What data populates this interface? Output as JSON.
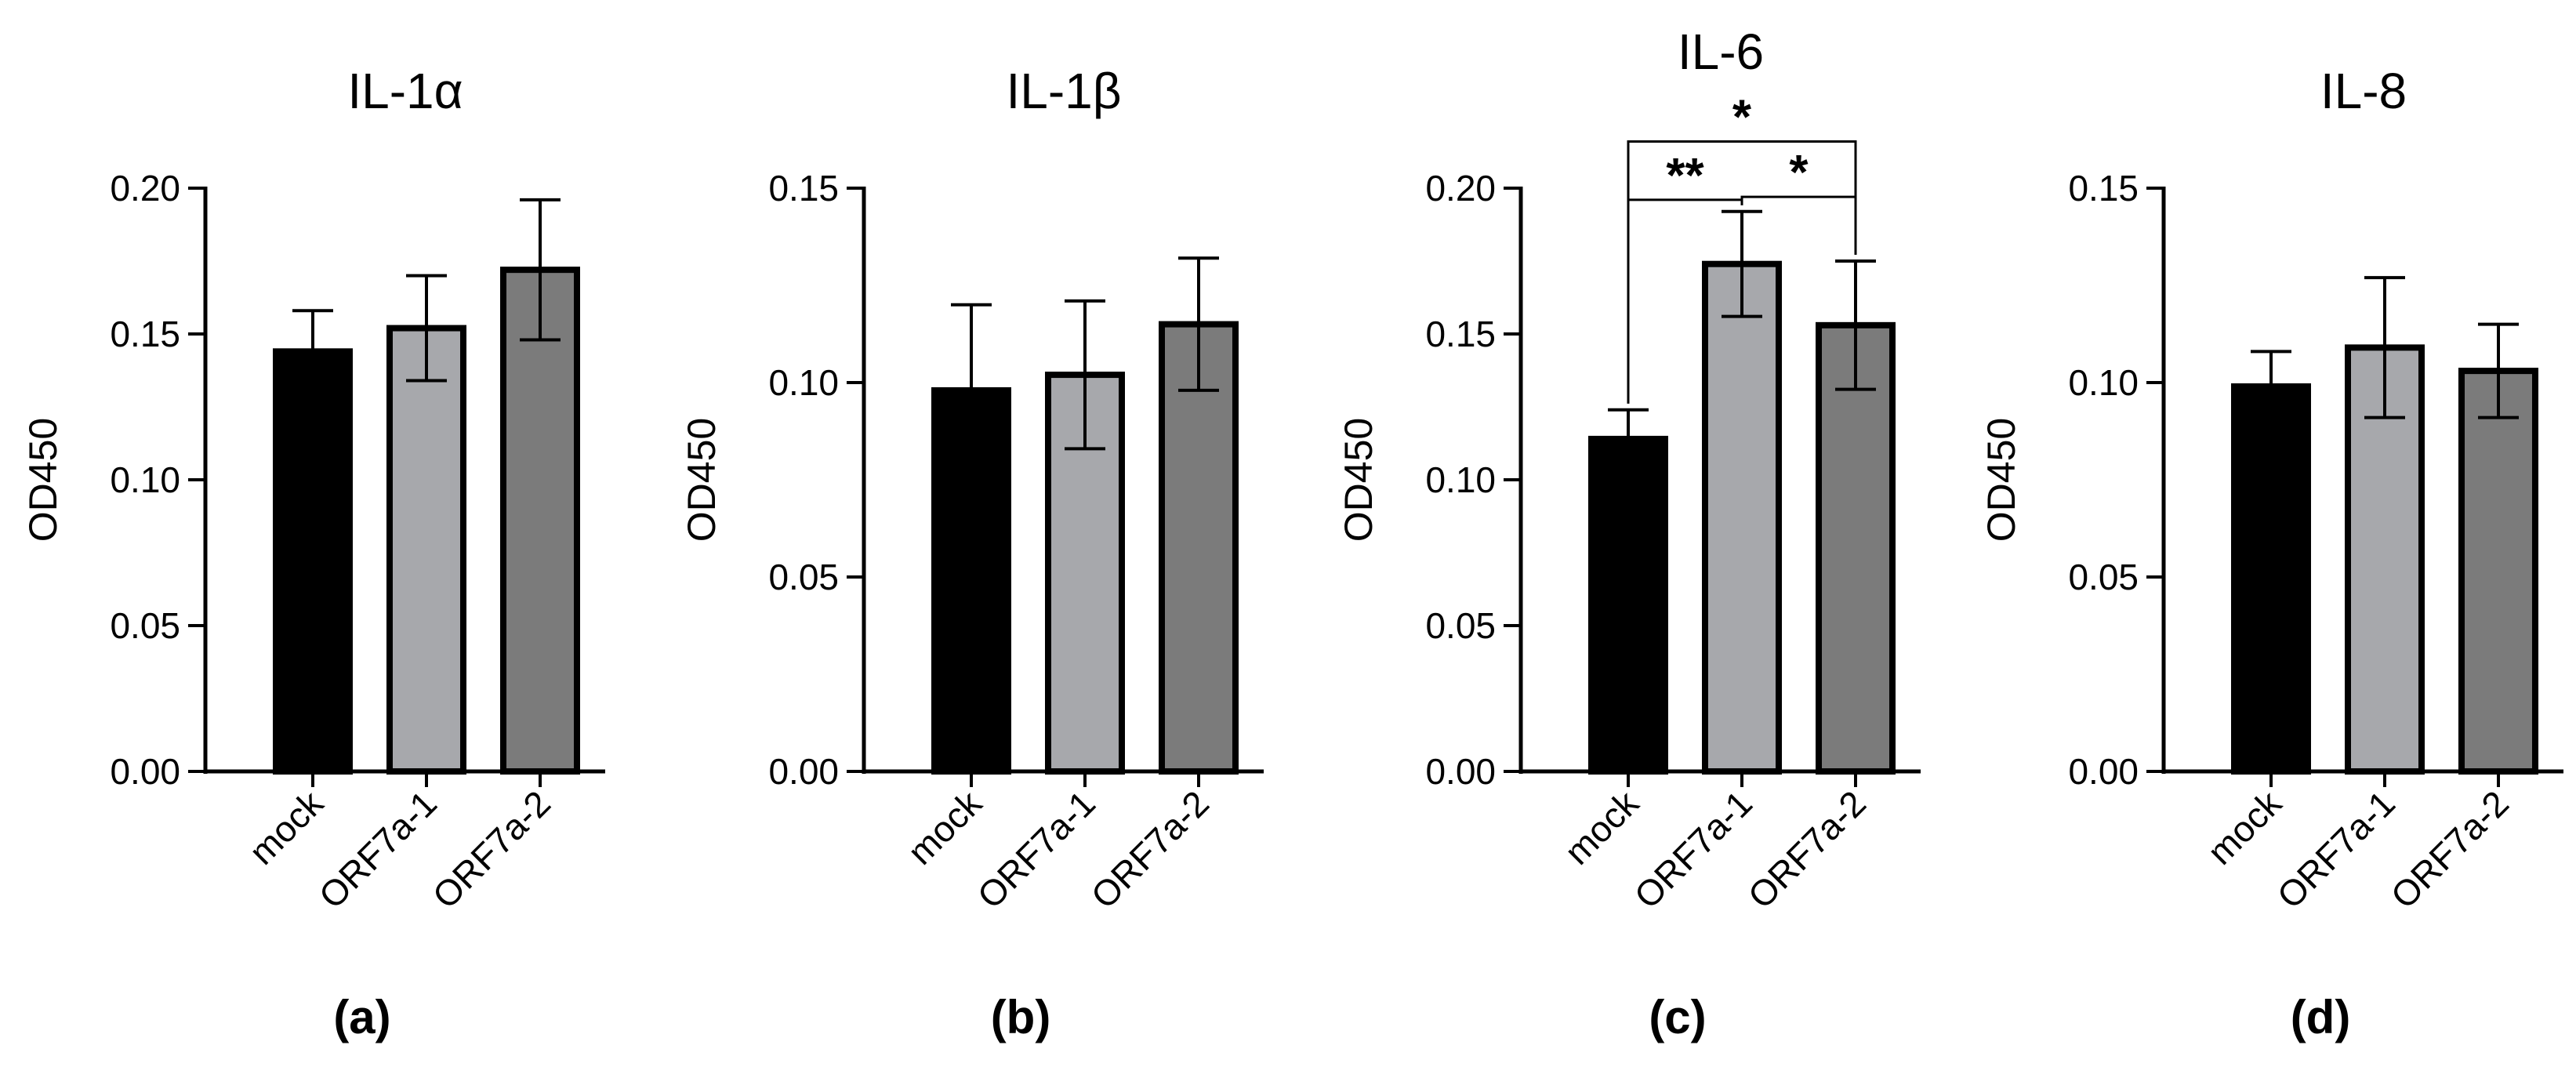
{
  "chart_data": [
    {
      "type": "bar",
      "panel_label": "(a)",
      "title": "IL-1α",
      "xlabel": "",
      "ylabel": "OD450",
      "categories": [
        "mock",
        "ORF7a-1",
        "ORF7a-2"
      ],
      "values": [
        0.144,
        0.152,
        0.172
      ],
      "errors": [
        0.014,
        0.018,
        0.024
      ],
      "ylim": [
        0,
        0.2
      ],
      "yticks": [
        "0.00",
        "0.05",
        "0.10",
        "0.15",
        "0.20"
      ],
      "bar_colors": [
        "#000000",
        "#a7a8ac",
        "#7b7b7b"
      ],
      "significance": []
    },
    {
      "type": "bar",
      "panel_label": "(b)",
      "title": "IL-1β",
      "xlabel": "",
      "ylabel": "OD450",
      "categories": [
        "mock",
        "ORF7a-1",
        "ORF7a-2"
      ],
      "values": [
        0.098,
        0.102,
        0.115
      ],
      "errors": [
        0.022,
        0.019,
        0.017
      ],
      "ylim": [
        0,
        0.15
      ],
      "yticks": [
        "0.00",
        "0.05",
        "0.10",
        "0.15"
      ],
      "bar_colors": [
        "#000000",
        "#a7a8ac",
        "#7b7b7b"
      ],
      "significance": []
    },
    {
      "type": "bar",
      "panel_label": "(c)",
      "title": "IL-6",
      "xlabel": "",
      "ylabel": "OD450",
      "categories": [
        "mock",
        "ORF7a-1",
        "ORF7a-2"
      ],
      "values": [
        0.114,
        0.174,
        0.153
      ],
      "errors": [
        0.01,
        0.018,
        0.022
      ],
      "ylim": [
        0,
        0.2
      ],
      "yticks": [
        "0.00",
        "0.05",
        "0.10",
        "0.15",
        "0.20"
      ],
      "bar_colors": [
        "#000000",
        "#a7a8ac",
        "#7b7b7b"
      ],
      "significance": [
        {
          "from": 0,
          "to": 2,
          "label": "*",
          "level": 0.216
        },
        {
          "from": 0,
          "to": 1,
          "label": "**",
          "level": 0.196
        },
        {
          "from": 1,
          "to": 2,
          "label": "*",
          "level": 0.197
        }
      ]
    },
    {
      "type": "bar",
      "panel_label": "(d)",
      "title": "IL-8",
      "xlabel": "",
      "ylabel": "OD450",
      "categories": [
        "mock",
        "ORF7a-1",
        "ORF7a-2"
      ],
      "values": [
        0.099,
        0.109,
        0.103
      ],
      "errors": [
        0.009,
        0.018,
        0.012
      ],
      "ylim": [
        0,
        0.15
      ],
      "yticks": [
        "0.00",
        "0.05",
        "0.10",
        "0.15"
      ],
      "bar_colors": [
        "#000000",
        "#a7a8ac",
        "#7b7b7b"
      ],
      "significance": []
    }
  ]
}
